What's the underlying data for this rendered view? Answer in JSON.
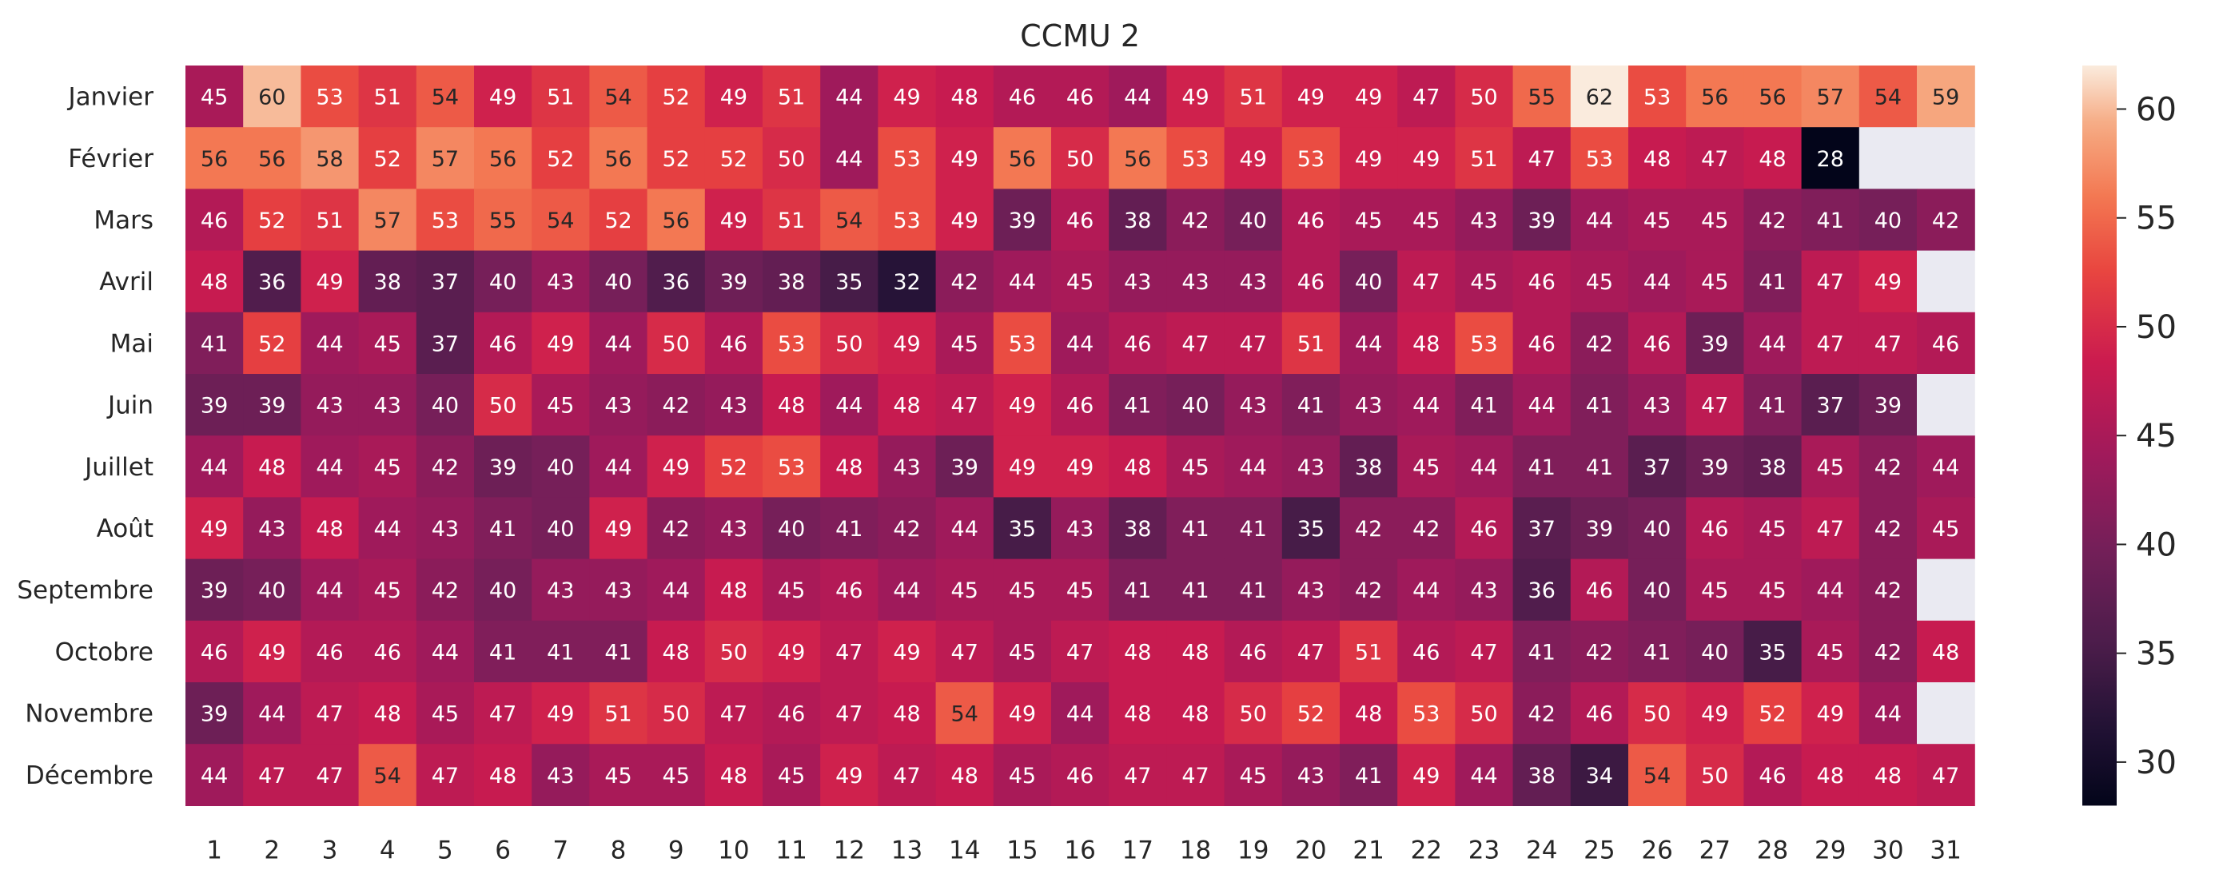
{
  "chart_data": {
    "type": "heatmap",
    "title": "CCMU 2",
    "xlabel": "",
    "ylabel": "",
    "columns": [
      "1",
      "2",
      "3",
      "4",
      "5",
      "6",
      "7",
      "8",
      "9",
      "10",
      "11",
      "12",
      "13",
      "14",
      "15",
      "16",
      "17",
      "18",
      "19",
      "20",
      "21",
      "22",
      "23",
      "24",
      "25",
      "26",
      "27",
      "28",
      "29",
      "30",
      "31"
    ],
    "rows": [
      "Janvier",
      "Février",
      "Mars",
      "Avril",
      "Mai",
      "Juin",
      "Juillet",
      "Août",
      "Septembre",
      "Octobre",
      "Novembre",
      "Décembre"
    ],
    "values": [
      [
        45,
        60,
        53,
        51,
        54,
        49,
        51,
        54,
        52,
        49,
        51,
        44,
        49,
        48,
        46,
        46,
        44,
        49,
        51,
        49,
        49,
        47,
        50,
        55,
        62,
        53,
        56,
        56,
        57,
        54,
        59
      ],
      [
        56,
        56,
        58,
        52,
        57,
        56,
        52,
        56,
        52,
        52,
        50,
        44,
        53,
        49,
        56,
        50,
        56,
        53,
        49,
        53,
        49,
        49,
        51,
        47,
        53,
        48,
        47,
        48,
        28,
        null,
        null
      ],
      [
        46,
        52,
        51,
        57,
        53,
        55,
        54,
        52,
        56,
        49,
        51,
        54,
        53,
        49,
        39,
        46,
        38,
        42,
        40,
        46,
        45,
        45,
        43,
        39,
        44,
        45,
        45,
        42,
        41,
        40,
        42
      ],
      [
        48,
        36,
        49,
        38,
        37,
        40,
        43,
        40,
        36,
        39,
        38,
        35,
        32,
        42,
        44,
        45,
        43,
        43,
        43,
        46,
        40,
        47,
        45,
        46,
        45,
        44,
        45,
        41,
        47,
        49,
        null
      ],
      [
        41,
        52,
        44,
        45,
        37,
        46,
        49,
        44,
        50,
        46,
        53,
        50,
        49,
        45,
        53,
        44,
        46,
        47,
        47,
        51,
        44,
        48,
        53,
        46,
        42,
        46,
        39,
        44,
        47,
        47,
        46
      ],
      [
        39,
        39,
        43,
        43,
        40,
        50,
        45,
        43,
        42,
        43,
        48,
        44,
        48,
        47,
        49,
        46,
        41,
        40,
        43,
        41,
        43,
        44,
        41,
        44,
        41,
        43,
        47,
        41,
        37,
        39,
        null
      ],
      [
        44,
        48,
        44,
        45,
        42,
        39,
        40,
        44,
        49,
        52,
        53,
        48,
        43,
        39,
        49,
        49,
        48,
        45,
        44,
        43,
        38,
        45,
        44,
        41,
        41,
        37,
        39,
        38,
        45,
        42,
        44
      ],
      [
        49,
        43,
        48,
        44,
        43,
        41,
        40,
        49,
        42,
        43,
        40,
        41,
        42,
        44,
        35,
        43,
        38,
        41,
        41,
        35,
        42,
        42,
        46,
        37,
        39,
        40,
        46,
        45,
        47,
        42,
        45
      ],
      [
        39,
        40,
        44,
        45,
        42,
        40,
        43,
        43,
        44,
        48,
        45,
        46,
        44,
        45,
        45,
        45,
        41,
        41,
        41,
        43,
        42,
        44,
        43,
        36,
        46,
        40,
        45,
        45,
        44,
        42,
        null
      ],
      [
        46,
        49,
        46,
        46,
        44,
        41,
        41,
        41,
        48,
        50,
        49,
        47,
        49,
        47,
        45,
        47,
        48,
        48,
        46,
        47,
        51,
        46,
        47,
        41,
        42,
        41,
        40,
        35,
        45,
        42,
        48
      ],
      [
        39,
        44,
        47,
        48,
        45,
        47,
        49,
        51,
        50,
        47,
        46,
        47,
        48,
        54,
        49,
        44,
        48,
        48,
        50,
        52,
        48,
        53,
        50,
        42,
        46,
        50,
        49,
        52,
        49,
        44,
        null
      ],
      [
        44,
        47,
        47,
        54,
        47,
        48,
        43,
        45,
        45,
        48,
        45,
        49,
        47,
        48,
        45,
        46,
        47,
        47,
        45,
        43,
        41,
        49,
        44,
        38,
        34,
        54,
        50,
        46,
        48,
        48,
        47
      ]
    ],
    "vmin": 28,
    "vmax": 62,
    "colormap": "rocket",
    "missing_color": "#eaeaf2",
    "colorbar_ticks": [
      30,
      35,
      40,
      45,
      50,
      55,
      60
    ],
    "grid": false
  }
}
